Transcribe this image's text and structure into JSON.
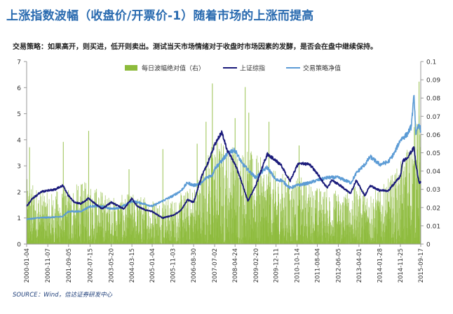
{
  "header": {
    "title": "上涨指数波幅（收盘价/开票价-1）随着市场的上涨而提高",
    "subtitle": "交易策略：如果高开，则买进，低开则卖出。测试当天市场情绪对于收盘时市场因素的发酵，是否会在盘中继续保持。"
  },
  "footer": {
    "source": "SOURCE：Wind，信达证券研发中心"
  },
  "chart_data": {
    "type": "line",
    "x_ticks": [
      "2000-01-04",
      "2000-11-07",
      "2001-09-05",
      "2002-07-15",
      "2003-05-20",
      "2004-03-15",
      "2005-01-04",
      "2005-11-03",
      "2006-08-30",
      "2007-07-02",
      "2008-04-24",
      "2009-02-20",
      "2009-12-11",
      "2010-10-14",
      "2011-08-04",
      "2012-06-05",
      "2013-04-01",
      "2014-01-28",
      "2014-11-25",
      "2015-09-17"
    ],
    "y_left": {
      "range": [
        0,
        7
      ],
      "ticks": [
        "0",
        "1",
        "2",
        "3",
        "4",
        "5",
        "6",
        "7"
      ]
    },
    "y_right": {
      "range": [
        0,
        0.1
      ],
      "ticks": [
        "0",
        "0.01",
        "0.02",
        "0.03",
        "0.04",
        "0.05",
        "0.06",
        "0.07",
        "0.08",
        "0.09",
        "0.1"
      ]
    },
    "legend_position": "top",
    "series": [
      {
        "name": "每日波幅绝对值（右）",
        "type": "bar",
        "axis": "right",
        "color": "#8dbb3c",
        "envelope_x": [
          "2000-01-04",
          "2000-11-07",
          "2001-09-05",
          "2002-07-15",
          "2003-05-20",
          "2004-03-15",
          "2005-01-04",
          "2005-11-03",
          "2006-08-30",
          "2007-07-02",
          "2008-04-24",
          "2009-02-20",
          "2009-12-11",
          "2010-10-14",
          "2011-08-04",
          "2012-06-05",
          "2013-04-01",
          "2014-01-28",
          "2014-11-25",
          "2015-09-17"
        ],
        "typical_max": [
          0.036,
          0.028,
          0.032,
          0.035,
          0.026,
          0.028,
          0.026,
          0.025,
          0.033,
          0.06,
          0.055,
          0.05,
          0.04,
          0.038,
          0.032,
          0.03,
          0.032,
          0.03,
          0.045,
          0.075
        ],
        "peak_spikes": [
          {
            "x": "2000-02-15",
            "y": 0.053
          },
          {
            "x": "2001-06-20",
            "y": 0.056
          },
          {
            "x": "2002-06-24",
            "y": 0.062
          },
          {
            "x": "2004-02-02",
            "y": 0.041
          },
          {
            "x": "2005-06-08",
            "y": 0.052
          },
          {
            "x": "2006-10-20",
            "y": 0.055
          },
          {
            "x": "2007-02-27",
            "y": 0.067
          },
          {
            "x": "2007-05-30",
            "y": 0.088
          },
          {
            "x": "2008-04-24",
            "y": 0.069
          },
          {
            "x": "2008-09-19",
            "y": 0.086
          },
          {
            "x": "2008-11-10",
            "y": 0.072
          },
          {
            "x": "2009-08-31",
            "y": 0.067
          },
          {
            "x": "2010-11-12",
            "y": 0.054
          },
          {
            "x": "2015-06-26",
            "y": 0.073
          },
          {
            "x": "2015-08-24",
            "y": 0.089
          }
        ]
      },
      {
        "name": "上证综指",
        "type": "line",
        "axis": "left",
        "unit_note": "",
        "color": "#1a1a7a",
        "points": [
          [
            "2000-01-04",
            1.45
          ],
          [
            "2000-04-01",
            1.75
          ],
          [
            "2000-08-01",
            2.0
          ],
          [
            "2000-11-07",
            2.05
          ],
          [
            "2001-03-01",
            2.1
          ],
          [
            "2001-06-14",
            2.25
          ],
          [
            "2001-09-05",
            1.85
          ],
          [
            "2001-12-01",
            1.6
          ],
          [
            "2002-03-01",
            1.55
          ],
          [
            "2002-06-25",
            1.75
          ],
          [
            "2002-07-15",
            1.7
          ],
          [
            "2003-01-06",
            1.35
          ],
          [
            "2003-05-20",
            1.6
          ],
          [
            "2003-11-18",
            1.35
          ],
          [
            "2004-03-15",
            1.75
          ],
          [
            "2004-06-01",
            1.45
          ],
          [
            "2004-10-01",
            1.3
          ],
          [
            "2005-01-04",
            1.25
          ],
          [
            "2005-06-06",
            1.0
          ],
          [
            "2005-11-03",
            1.1
          ],
          [
            "2006-03-01",
            1.3
          ],
          [
            "2006-06-01",
            1.7
          ],
          [
            "2006-08-30",
            1.6
          ],
          [
            "2006-12-31",
            2.65
          ],
          [
            "2007-03-01",
            2.95
          ],
          [
            "2007-07-02",
            3.8
          ],
          [
            "2007-10-16",
            4.3
          ],
          [
            "2007-12-31",
            3.6
          ],
          [
            "2008-04-24",
            3.05
          ],
          [
            "2008-07-01",
            2.6
          ],
          [
            "2008-10-28",
            1.65
          ],
          [
            "2009-02-20",
            2.25
          ],
          [
            "2009-08-04",
            3.45
          ],
          [
            "2009-12-11",
            3.2
          ],
          [
            "2010-03-01",
            3.0
          ],
          [
            "2010-07-02",
            2.4
          ],
          [
            "2010-10-14",
            3.0
          ],
          [
            "2010-11-08",
            3.1
          ],
          [
            "2011-04-18",
            3.05
          ],
          [
            "2011-08-04",
            2.7
          ],
          [
            "2011-12-28",
            2.15
          ],
          [
            "2012-03-01",
            2.45
          ],
          [
            "2012-06-05",
            2.3
          ],
          [
            "2012-12-04",
            1.95
          ],
          [
            "2013-02-18",
            2.45
          ],
          [
            "2013-04-01",
            2.25
          ],
          [
            "2013-06-25",
            1.85
          ],
          [
            "2013-09-12",
            2.25
          ],
          [
            "2014-01-28",
            2.05
          ],
          [
            "2014-06-01",
            2.05
          ],
          [
            "2014-11-25",
            2.6
          ],
          [
            "2014-12-31",
            3.2
          ],
          [
            "2015-03-01",
            3.3
          ],
          [
            "2015-06-12",
            3.7
          ],
          [
            "2015-07-08",
            3.05
          ],
          [
            "2015-08-26",
            2.35
          ],
          [
            "2015-09-17",
            2.4
          ]
        ]
      },
      {
        "name": "交易策略净值",
        "type": "line",
        "axis": "left",
        "color": "#5b9bd5",
        "points": [
          [
            "2000-01-04",
            0.95
          ],
          [
            "2000-06-01",
            1.0
          ],
          [
            "2000-11-07",
            1.02
          ],
          [
            "2001-06-01",
            1.05
          ],
          [
            "2001-09-05",
            1.25
          ],
          [
            "2002-03-01",
            1.25
          ],
          [
            "2002-07-15",
            1.45
          ],
          [
            "2003-01-01",
            1.45
          ],
          [
            "2003-05-20",
            1.35
          ],
          [
            "2003-10-01",
            1.4
          ],
          [
            "2004-03-15",
            1.65
          ],
          [
            "2004-09-01",
            1.55
          ],
          [
            "2005-01-04",
            1.45
          ],
          [
            "2005-06-01",
            1.65
          ],
          [
            "2005-11-03",
            1.85
          ],
          [
            "2006-03-01",
            2.05
          ],
          [
            "2006-06-01",
            2.35
          ],
          [
            "2006-08-30",
            2.25
          ],
          [
            "2006-12-31",
            2.35
          ],
          [
            "2007-03-01",
            2.55
          ],
          [
            "2007-05-30",
            2.65
          ],
          [
            "2007-07-02",
            2.9
          ],
          [
            "2007-10-16",
            3.2
          ],
          [
            "2008-02-01",
            3.55
          ],
          [
            "2008-04-24",
            3.6
          ],
          [
            "2008-08-01",
            3.1
          ],
          [
            "2008-12-01",
            2.75
          ],
          [
            "2009-02-20",
            2.55
          ],
          [
            "2009-08-04",
            2.95
          ],
          [
            "2009-12-11",
            2.45
          ],
          [
            "2010-03-01",
            2.45
          ],
          [
            "2010-07-02",
            2.15
          ],
          [
            "2010-10-14",
            2.25
          ],
          [
            "2011-04-18",
            2.35
          ],
          [
            "2011-08-04",
            2.45
          ],
          [
            "2012-01-01",
            2.55
          ],
          [
            "2012-06-05",
            2.55
          ],
          [
            "2012-12-04",
            2.35
          ],
          [
            "2013-03-01",
            2.75
          ],
          [
            "2013-06-25",
            3.05
          ],
          [
            "2013-09-12",
            3.35
          ],
          [
            "2014-01-28",
            3.05
          ],
          [
            "2014-06-01",
            3.15
          ],
          [
            "2014-09-01",
            3.5
          ],
          [
            "2014-11-25",
            4.0
          ],
          [
            "2015-03-01",
            4.2
          ],
          [
            "2015-05-01",
            4.5
          ],
          [
            "2015-06-12",
            5.7
          ],
          [
            "2015-07-08",
            4.2
          ],
          [
            "2015-08-26",
            4.6
          ],
          [
            "2015-09-17",
            4.35
          ]
        ]
      }
    ]
  }
}
